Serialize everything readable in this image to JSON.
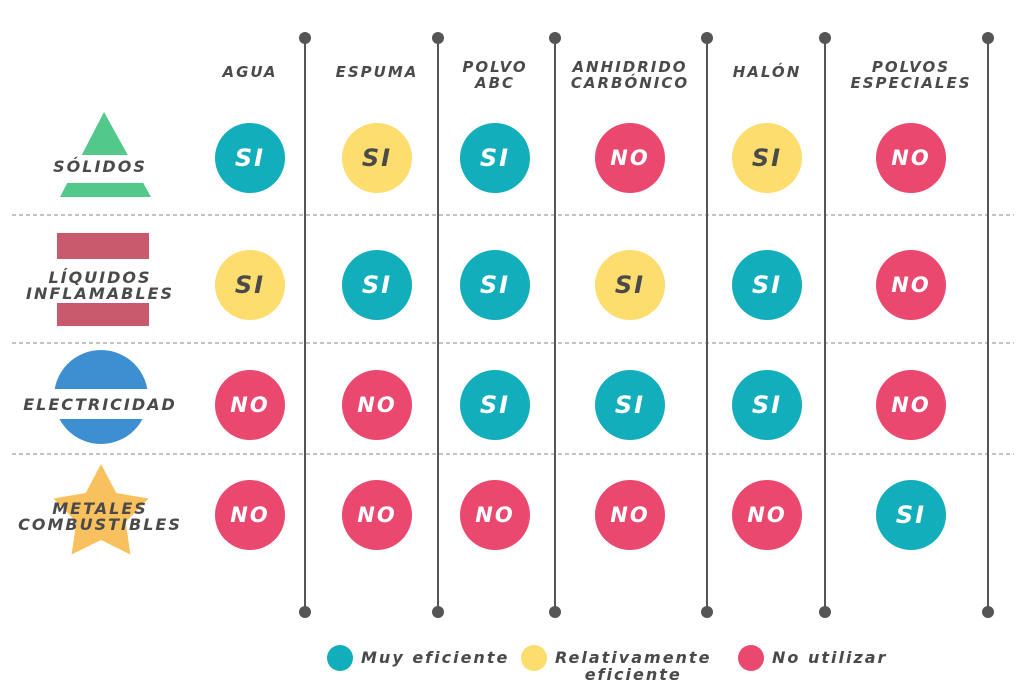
{
  "colors": {
    "teal": "#13aebb",
    "yellow": "#fddd6e",
    "pink": "#eb4870",
    "text": "#4a4a4a",
    "line": "#555555",
    "solidos_icon": "#52c98a",
    "liquidos_icon": "#c95a6e",
    "electricidad_icon": "#3e8fd2",
    "metales_icon": "#f9c15e"
  },
  "chart_data": {
    "type": "table",
    "columns": [
      "AGUA",
      "ESPUMA",
      "POLVO ABC",
      "ANHIDRIDO CARBÓNICO",
      "HALÓN",
      "POLVOS ESPECIALES"
    ],
    "column_headers": [
      [
        "AGUA"
      ],
      [
        "ESPUMA"
      ],
      [
        "POLVO",
        "ABC"
      ],
      [
        "ANHIDRIDO",
        "CARBÓNICO"
      ],
      [
        "HALÓN"
      ],
      [
        "POLVOS",
        "ESPECIALES"
      ]
    ],
    "rows": [
      {
        "label": [
          "SÓLIDOS"
        ],
        "icon": "triangle-icon",
        "values": [
          "SI",
          "SI",
          "SI",
          "NO",
          "SI",
          "NO"
        ],
        "ratings": [
          "muy",
          "relativo",
          "muy",
          "no",
          "relativo",
          "no"
        ]
      },
      {
        "label": [
          "LÍQUIDOS",
          "INFLAMABLES"
        ],
        "icon": "bars-icon",
        "values": [
          "SI",
          "SI",
          "SI",
          "SI",
          "SI",
          "NO"
        ],
        "ratings": [
          "relativo",
          "muy",
          "muy",
          "relativo",
          "muy",
          "no"
        ]
      },
      {
        "label": [
          "ELECTRICIDAD"
        ],
        "icon": "circle-icon",
        "values": [
          "NO",
          "NO",
          "SI",
          "SI",
          "SI",
          "NO"
        ],
        "ratings": [
          "no",
          "no",
          "muy",
          "muy",
          "muy",
          "no"
        ]
      },
      {
        "label": [
          "METALES",
          "COMBUSTIBLES"
        ],
        "icon": "star-icon",
        "values": [
          "NO",
          "NO",
          "NO",
          "NO",
          "NO",
          "SI"
        ],
        "ratings": [
          "no",
          "no",
          "no",
          "no",
          "no",
          "muy"
        ]
      }
    ],
    "legend": [
      {
        "key": "muy",
        "label": [
          "Muy eficiente"
        ],
        "color": "#13aebb"
      },
      {
        "key": "relativo",
        "label": [
          "Relativamente",
          "eficiente"
        ],
        "color": "#fddd6e"
      },
      {
        "key": "no",
        "label": [
          "No utilizar"
        ],
        "color": "#eb4870"
      }
    ]
  }
}
